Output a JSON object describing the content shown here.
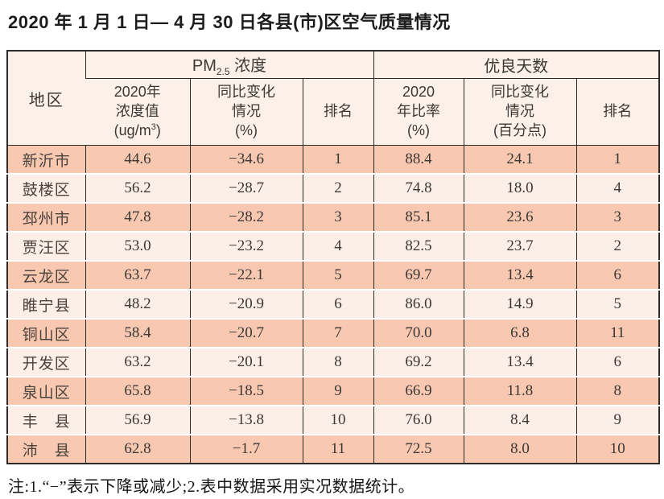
{
  "title": "2020 年 1 月 1 日— 4 月 30 日各县(市)区空气质量情况",
  "note": "注:1.“−”表示下降或减少;2.表中数据采用实况数据统计。",
  "colors": {
    "row_odd_bg": "#f8c8b0",
    "row_even_bg": "#fcefe7",
    "header_bg": "#fbf1e8",
    "grid_line": "#2e2a27",
    "text": "#3c3835"
  },
  "table": {
    "region_header": "地区",
    "groups": {
      "pm": {
        "pre": "PM",
        "sub": "2.5",
        "post": " 浓度"
      },
      "good_days": "优良天数"
    },
    "sub_headers": {
      "pm_value": {
        "line1": "2020年",
        "line2": "浓度值",
        "line3_pre": "(ug/m",
        "line3_sup": "3",
        "line3_post": ")"
      },
      "pm_change": {
        "line1": "同比变化",
        "line2": "情况",
        "line3": "(%)"
      },
      "pm_rank": "排名",
      "good_rate": {
        "line1": "2020",
        "line2": "年比率",
        "line3": "(%)"
      },
      "good_change": {
        "line1": "同比变化",
        "line2": "情况",
        "line3": "(百分点)"
      },
      "good_rank": "排名"
    },
    "rows": [
      {
        "region": "新沂市",
        "pm_value": "44.6",
        "pm_change": "−34.6",
        "pm_rank": "1",
        "good_rate": "88.4",
        "good_change": "24.1",
        "good_rank": "1"
      },
      {
        "region": "鼓楼区",
        "pm_value": "56.2",
        "pm_change": "−28.7",
        "pm_rank": "2",
        "good_rate": "74.8",
        "good_change": "18.0",
        "good_rank": "4"
      },
      {
        "region": "邳州市",
        "pm_value": "47.8",
        "pm_change": "−28.2",
        "pm_rank": "3",
        "good_rate": "85.1",
        "good_change": "23.6",
        "good_rank": "3"
      },
      {
        "region": "贾汪区",
        "pm_value": "53.0",
        "pm_change": "−23.2",
        "pm_rank": "4",
        "good_rate": "82.5",
        "good_change": "23.7",
        "good_rank": "2"
      },
      {
        "region": "云龙区",
        "pm_value": "63.7",
        "pm_change": "−22.1",
        "pm_rank": "5",
        "good_rate": "69.7",
        "good_change": "13.4",
        "good_rank": "6"
      },
      {
        "region": "睢宁县",
        "pm_value": "48.2",
        "pm_change": "−20.9",
        "pm_rank": "6",
        "good_rate": "86.0",
        "good_change": "14.9",
        "good_rank": "5"
      },
      {
        "region": "铜山区",
        "pm_value": "58.4",
        "pm_change": "−20.7",
        "pm_rank": "7",
        "good_rate": "70.0",
        "good_change": "6.8",
        "good_rank": "11"
      },
      {
        "region": "开发区",
        "pm_value": "63.2",
        "pm_change": "−20.1",
        "pm_rank": "8",
        "good_rate": "69.2",
        "good_change": "13.4",
        "good_rank": "6"
      },
      {
        "region": "泉山区",
        "pm_value": "65.8",
        "pm_change": "−18.5",
        "pm_rank": "9",
        "good_rate": "66.9",
        "good_change": "11.8",
        "good_rank": "8"
      },
      {
        "region": "丰　县",
        "pm_value": "56.9",
        "pm_change": "−13.8",
        "pm_rank": "10",
        "good_rate": "76.0",
        "good_change": "8.4",
        "good_rank": "9"
      },
      {
        "region": "沛　县",
        "pm_value": "62.8",
        "pm_change": "−1.7",
        "pm_rank": "11",
        "good_rate": "72.5",
        "good_change": "8.0",
        "good_rank": "10"
      }
    ]
  },
  "chart_data": {
    "type": "table",
    "title": "2020年1月1日—4月30日各县(市)区空气质量情况",
    "column_groups": [
      "PM2.5浓度",
      "优良天数"
    ],
    "columns": [
      "地区",
      "2020年浓度值(ug/m3)",
      "同比变化情况(%)",
      "排名",
      "2020年比率(%)",
      "同比变化情况(百分点)",
      "排名"
    ],
    "rows": [
      [
        "新沂市",
        44.6,
        -34.6,
        1,
        88.4,
        24.1,
        1
      ],
      [
        "鼓楼区",
        56.2,
        -28.7,
        2,
        74.8,
        18.0,
        4
      ],
      [
        "邳州市",
        47.8,
        -28.2,
        3,
        85.1,
        23.6,
        3
      ],
      [
        "贾汪区",
        53.0,
        -23.2,
        4,
        82.5,
        23.7,
        2
      ],
      [
        "云龙区",
        63.7,
        -22.1,
        5,
        69.7,
        13.4,
        6
      ],
      [
        "睢宁县",
        48.2,
        -20.9,
        6,
        86.0,
        14.9,
        5
      ],
      [
        "铜山区",
        58.4,
        -20.7,
        7,
        70.0,
        6.8,
        11
      ],
      [
        "开发区",
        63.2,
        -20.1,
        8,
        69.2,
        13.4,
        6
      ],
      [
        "泉山区",
        65.8,
        -18.5,
        9,
        66.9,
        11.8,
        8
      ],
      [
        "丰县",
        56.9,
        -13.8,
        10,
        76.0,
        8.4,
        9
      ],
      [
        "沛县",
        62.8,
        -1.7,
        11,
        72.5,
        8.0,
        10
      ]
    ],
    "note": "注:1.“−”表示下降或减少;2.表中数据采用实况数据统计。"
  }
}
